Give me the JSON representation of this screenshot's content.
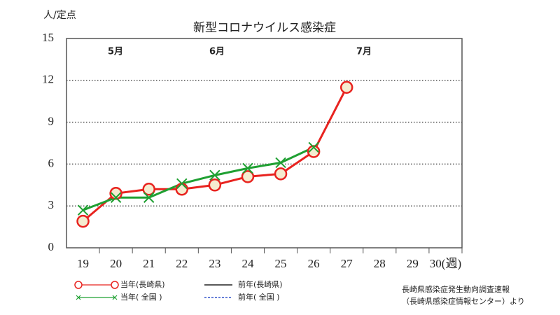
{
  "chart_data": {
    "type": "line",
    "title": "新型コロナウイルス感染症",
    "y_axis_label": "人/定点",
    "annotations": [
      "5月",
      "6月",
      "7月"
    ],
    "categories": [
      "19",
      "20",
      "21",
      "22",
      "23",
      "24",
      "25",
      "26",
      "27",
      "28",
      "29",
      "30(週)"
    ],
    "series": [
      {
        "name": "当年(長崎県)",
        "color": "#e8231f",
        "marker": "circle",
        "dash": false,
        "values": [
          1.9,
          3.9,
          4.2,
          4.2,
          4.5,
          5.1,
          5.3,
          6.9,
          11.5,
          null,
          null,
          null
        ]
      },
      {
        "name": "当年( 全国 )",
        "color": "#1fa032",
        "marker": "x",
        "dash": false,
        "values": [
          2.7,
          3.6,
          3.6,
          4.6,
          5.2,
          5.7,
          6.1,
          7.2,
          null,
          null,
          null,
          null
        ]
      },
      {
        "name": "前年(長崎県)",
        "color": "#222222",
        "marker": "none",
        "dash": false,
        "values": [
          null,
          null,
          null,
          null,
          null,
          null,
          null,
          null,
          null,
          null,
          null,
          null
        ]
      },
      {
        "name": "前年( 全国 )",
        "color": "#3355cc",
        "marker": "none",
        "dash": true,
        "values": [
          null,
          null,
          null,
          null,
          null,
          null,
          null,
          null,
          null,
          null,
          null,
          null
        ]
      }
    ],
    "ylim": [
      0,
      15
    ],
    "yticks": [
      0,
      3,
      6,
      9,
      12,
      15
    ],
    "grid": true,
    "source": [
      "長崎県感染症発生動向調査速報",
      "（長崎県感染症情報センター）より"
    ]
  }
}
